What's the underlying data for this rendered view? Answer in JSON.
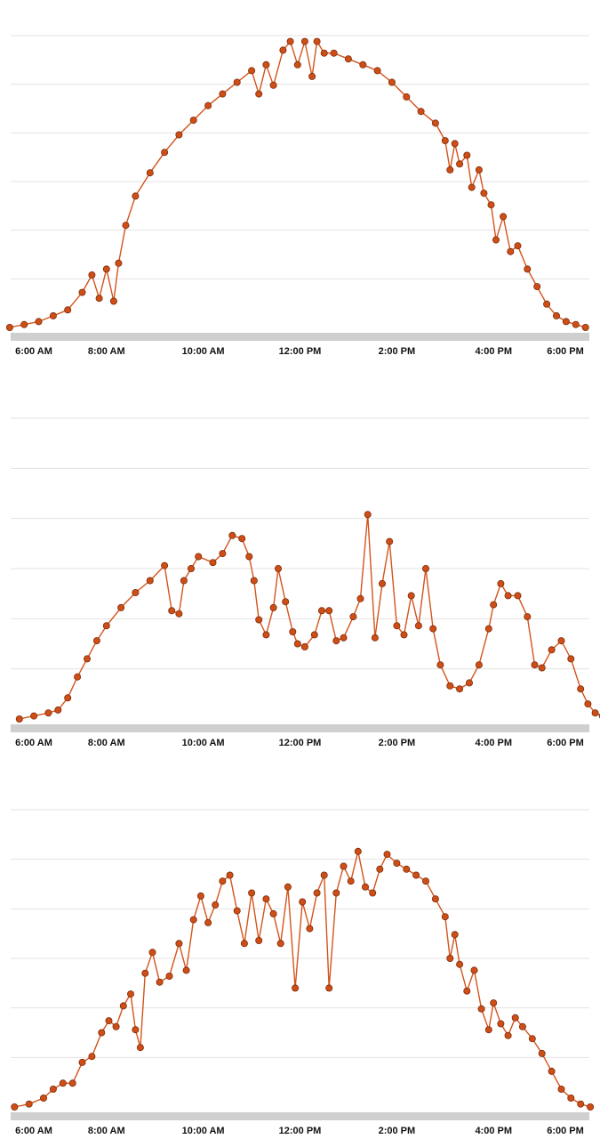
{
  "chart_data": [
    {
      "type": "line",
      "x_unit": "hour of day",
      "x_ticks": [
        6,
        8,
        10,
        12,
        14,
        16,
        18
      ],
      "x_tick_labels": [
        "6:00 AM",
        "8:00 AM",
        "10:00 AM",
        "12:00 PM",
        "2:00 PM",
        "4:00 PM",
        "6:00 PM"
      ],
      "xlim": [
        5.8,
        18.2
      ],
      "ylim": [
        0,
        1.0
      ],
      "grid": true,
      "marker": "circle",
      "line_color": "#d4541c",
      "marker_color": "#cf4e16",
      "points": [
        [
          6.0,
          0.0
        ],
        [
          6.3,
          0.01
        ],
        [
          6.6,
          0.02
        ],
        [
          6.9,
          0.04
        ],
        [
          7.2,
          0.06
        ],
        [
          7.5,
          0.12
        ],
        [
          7.7,
          0.18
        ],
        [
          7.85,
          0.1
        ],
        [
          8.0,
          0.2
        ],
        [
          8.15,
          0.09
        ],
        [
          8.25,
          0.22
        ],
        [
          8.4,
          0.35
        ],
        [
          8.6,
          0.45
        ],
        [
          8.9,
          0.53
        ],
        [
          9.2,
          0.6
        ],
        [
          9.5,
          0.66
        ],
        [
          9.8,
          0.71
        ],
        [
          10.1,
          0.76
        ],
        [
          10.4,
          0.8
        ],
        [
          10.7,
          0.84
        ],
        [
          11.0,
          0.88
        ],
        [
          11.15,
          0.8
        ],
        [
          11.3,
          0.9
        ],
        [
          11.45,
          0.83
        ],
        [
          11.65,
          0.95
        ],
        [
          11.8,
          0.98
        ],
        [
          11.95,
          0.9
        ],
        [
          12.1,
          0.98
        ],
        [
          12.25,
          0.86
        ],
        [
          12.35,
          0.98
        ],
        [
          12.5,
          0.94
        ],
        [
          12.7,
          0.94
        ],
        [
          13.0,
          0.92
        ],
        [
          13.3,
          0.9
        ],
        [
          13.6,
          0.88
        ],
        [
          13.9,
          0.84
        ],
        [
          14.2,
          0.79
        ],
        [
          14.5,
          0.74
        ],
        [
          14.8,
          0.7
        ],
        [
          15.0,
          0.64
        ],
        [
          15.1,
          0.54
        ],
        [
          15.2,
          0.63
        ],
        [
          15.3,
          0.56
        ],
        [
          15.45,
          0.59
        ],
        [
          15.55,
          0.48
        ],
        [
          15.7,
          0.54
        ],
        [
          15.8,
          0.46
        ],
        [
          15.95,
          0.42
        ],
        [
          16.05,
          0.3
        ],
        [
          16.2,
          0.38
        ],
        [
          16.35,
          0.26
        ],
        [
          16.5,
          0.28
        ],
        [
          16.7,
          0.2
        ],
        [
          16.9,
          0.14
        ],
        [
          17.1,
          0.08
        ],
        [
          17.3,
          0.04
        ],
        [
          17.5,
          0.02
        ],
        [
          17.7,
          0.01
        ],
        [
          17.9,
          0.0
        ]
      ]
    },
    {
      "type": "line",
      "x_unit": "hour of day",
      "x_ticks": [
        6,
        8,
        10,
        12,
        14,
        16,
        18
      ],
      "x_tick_labels": [
        "6:00 AM",
        "8:00 AM",
        "10:00 AM",
        "12:00 PM",
        "2:00 PM",
        "4:00 PM",
        "6:00 PM"
      ],
      "xlim": [
        5.8,
        18.2
      ],
      "ylim": [
        0,
        1.0
      ],
      "grid": true,
      "marker": "circle",
      "line_color": "#d4541c",
      "marker_color": "#cf4e16",
      "points": [
        [
          6.2,
          0.0
        ],
        [
          6.5,
          0.01
        ],
        [
          6.8,
          0.02
        ],
        [
          7.0,
          0.03
        ],
        [
          7.2,
          0.07
        ],
        [
          7.4,
          0.14
        ],
        [
          7.6,
          0.2
        ],
        [
          7.8,
          0.26
        ],
        [
          8.0,
          0.31
        ],
        [
          8.3,
          0.37
        ],
        [
          8.6,
          0.42
        ],
        [
          8.9,
          0.46
        ],
        [
          9.2,
          0.51
        ],
        [
          9.35,
          0.36
        ],
        [
          9.5,
          0.35
        ],
        [
          9.6,
          0.46
        ],
        [
          9.75,
          0.5
        ],
        [
          9.9,
          0.54
        ],
        [
          10.2,
          0.52
        ],
        [
          10.4,
          0.55
        ],
        [
          10.6,
          0.61
        ],
        [
          10.8,
          0.6
        ],
        [
          10.95,
          0.54
        ],
        [
          11.05,
          0.46
        ],
        [
          11.15,
          0.33
        ],
        [
          11.3,
          0.28
        ],
        [
          11.45,
          0.37
        ],
        [
          11.55,
          0.5
        ],
        [
          11.7,
          0.39
        ],
        [
          11.85,
          0.29
        ],
        [
          11.95,
          0.25
        ],
        [
          12.1,
          0.24
        ],
        [
          12.3,
          0.28
        ],
        [
          12.45,
          0.36
        ],
        [
          12.6,
          0.36
        ],
        [
          12.75,
          0.26
        ],
        [
          12.9,
          0.27
        ],
        [
          13.1,
          0.34
        ],
        [
          13.25,
          0.4
        ],
        [
          13.4,
          0.68
        ],
        [
          13.55,
          0.27
        ],
        [
          13.7,
          0.45
        ],
        [
          13.85,
          0.59
        ],
        [
          14.0,
          0.31
        ],
        [
          14.15,
          0.28
        ],
        [
          14.3,
          0.41
        ],
        [
          14.45,
          0.31
        ],
        [
          14.6,
          0.5
        ],
        [
          14.75,
          0.3
        ],
        [
          14.9,
          0.18
        ],
        [
          15.1,
          0.11
        ],
        [
          15.3,
          0.1
        ],
        [
          15.5,
          0.12
        ],
        [
          15.7,
          0.18
        ],
        [
          15.9,
          0.3
        ],
        [
          16.0,
          0.38
        ],
        [
          16.15,
          0.45
        ],
        [
          16.3,
          0.41
        ],
        [
          16.5,
          0.41
        ],
        [
          16.7,
          0.34
        ],
        [
          16.85,
          0.18
        ],
        [
          17.0,
          0.17
        ],
        [
          17.2,
          0.23
        ],
        [
          17.4,
          0.26
        ],
        [
          17.6,
          0.2
        ],
        [
          17.8,
          0.1
        ],
        [
          17.95,
          0.05
        ],
        [
          18.1,
          0.02
        ],
        [
          18.25,
          0.01
        ],
        [
          18.4,
          0.0
        ]
      ]
    },
    {
      "type": "line",
      "x_unit": "hour of day",
      "x_ticks": [
        6,
        8,
        10,
        12,
        14,
        16,
        18
      ],
      "x_tick_labels": [
        "6:00 AM",
        "8:00 AM",
        "10:00 AM",
        "12:00 PM",
        "2:00 PM",
        "4:00 PM",
        "6:00 PM"
      ],
      "xlim": [
        5.8,
        18.2
      ],
      "ylim": [
        0,
        1.0
      ],
      "grid": true,
      "marker": "circle",
      "line_color": "#d4541c",
      "marker_color": "#cf4e16",
      "points": [
        [
          6.1,
          0.0
        ],
        [
          6.4,
          0.01
        ],
        [
          6.7,
          0.03
        ],
        [
          6.9,
          0.06
        ],
        [
          7.1,
          0.08
        ],
        [
          7.3,
          0.08
        ],
        [
          7.5,
          0.15
        ],
        [
          7.7,
          0.17
        ],
        [
          7.9,
          0.25
        ],
        [
          8.05,
          0.29
        ],
        [
          8.2,
          0.27
        ],
        [
          8.35,
          0.34
        ],
        [
          8.5,
          0.38
        ],
        [
          8.6,
          0.26
        ],
        [
          8.7,
          0.2
        ],
        [
          8.8,
          0.45
        ],
        [
          8.95,
          0.52
        ],
        [
          9.1,
          0.42
        ],
        [
          9.3,
          0.44
        ],
        [
          9.5,
          0.55
        ],
        [
          9.65,
          0.46
        ],
        [
          9.8,
          0.63
        ],
        [
          9.95,
          0.71
        ],
        [
          10.1,
          0.62
        ],
        [
          10.25,
          0.68
        ],
        [
          10.4,
          0.76
        ],
        [
          10.55,
          0.78
        ],
        [
          10.7,
          0.66
        ],
        [
          10.85,
          0.55
        ],
        [
          11.0,
          0.72
        ],
        [
          11.15,
          0.56
        ],
        [
          11.3,
          0.7
        ],
        [
          11.45,
          0.65
        ],
        [
          11.6,
          0.55
        ],
        [
          11.75,
          0.74
        ],
        [
          11.9,
          0.4
        ],
        [
          12.05,
          0.69
        ],
        [
          12.2,
          0.6
        ],
        [
          12.35,
          0.72
        ],
        [
          12.5,
          0.78
        ],
        [
          12.6,
          0.4
        ],
        [
          12.75,
          0.72
        ],
        [
          12.9,
          0.81
        ],
        [
          13.05,
          0.76
        ],
        [
          13.2,
          0.86
        ],
        [
          13.35,
          0.74
        ],
        [
          13.5,
          0.72
        ],
        [
          13.65,
          0.8
        ],
        [
          13.8,
          0.85
        ],
        [
          14.0,
          0.82
        ],
        [
          14.2,
          0.8
        ],
        [
          14.4,
          0.78
        ],
        [
          14.6,
          0.76
        ],
        [
          14.8,
          0.7
        ],
        [
          15.0,
          0.64
        ],
        [
          15.1,
          0.5
        ],
        [
          15.2,
          0.58
        ],
        [
          15.3,
          0.48
        ],
        [
          15.45,
          0.39
        ],
        [
          15.6,
          0.46
        ],
        [
          15.75,
          0.33
        ],
        [
          15.9,
          0.26
        ],
        [
          16.0,
          0.35
        ],
        [
          16.15,
          0.28
        ],
        [
          16.3,
          0.24
        ],
        [
          16.45,
          0.3
        ],
        [
          16.6,
          0.27
        ],
        [
          16.8,
          0.23
        ],
        [
          17.0,
          0.18
        ],
        [
          17.2,
          0.12
        ],
        [
          17.4,
          0.06
        ],
        [
          17.6,
          0.03
        ],
        [
          17.8,
          0.01
        ],
        [
          18.0,
          0.0
        ]
      ]
    }
  ]
}
